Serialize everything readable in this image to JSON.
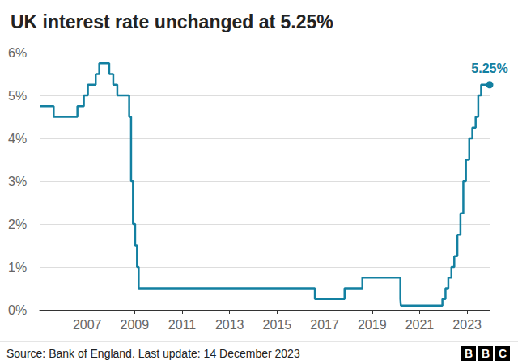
{
  "chart_data": {
    "type": "line",
    "title": "UK interest rate unchanged at 5.25%",
    "source": "Source: Bank of England. Last update: 14 December 2023",
    "logo": "BBC",
    "x": [
      2005.0,
      2005.59,
      2006.59,
      2006.86,
      2007.03,
      2007.36,
      2007.51,
      2007.93,
      2008.1,
      2008.27,
      2008.77,
      2008.85,
      2008.93,
      2009.02,
      2009.1,
      2009.17,
      2016.59,
      2017.84,
      2018.59,
      2020.19,
      2020.21,
      2021.96,
      2022.09,
      2022.21,
      2022.34,
      2022.46,
      2022.59,
      2022.72,
      2022.84,
      2022.95,
      2023.09,
      2023.22,
      2023.36,
      2023.47,
      2023.59,
      2023.95
    ],
    "values": [
      4.75,
      4.5,
      4.75,
      5.0,
      5.25,
      5.5,
      5.75,
      5.5,
      5.25,
      5.0,
      4.5,
      3.0,
      2.0,
      1.5,
      1.0,
      0.5,
      0.25,
      0.5,
      0.75,
      0.25,
      0.1,
      0.25,
      0.5,
      0.75,
      1.0,
      1.25,
      1.75,
      2.25,
      3.0,
      3.5,
      4.0,
      4.25,
      4.5,
      5.0,
      5.25,
      5.25
    ],
    "color": "#1380a1",
    "line_style": "step",
    "xlim": [
      2005.0,
      2023.95
    ],
    "xticks": [
      2007,
      2009,
      2011,
      2013,
      2015,
      2017,
      2019,
      2021,
      2023
    ],
    "ylim": [
      0,
      6
    ],
    "yticks": [
      {
        "value": 0,
        "label": "0%"
      },
      {
        "value": 1,
        "label": "1%"
      },
      {
        "value": 2,
        "label": "2%"
      },
      {
        "value": 3,
        "label": "3%"
      },
      {
        "value": 4,
        "label": "4%"
      },
      {
        "value": 5,
        "label": "5%"
      },
      {
        "value": 6,
        "label": "6%"
      }
    ],
    "grid": true,
    "annotations": [
      {
        "x": 2023.95,
        "y": 5.25,
        "text": "5.25%"
      }
    ]
  }
}
